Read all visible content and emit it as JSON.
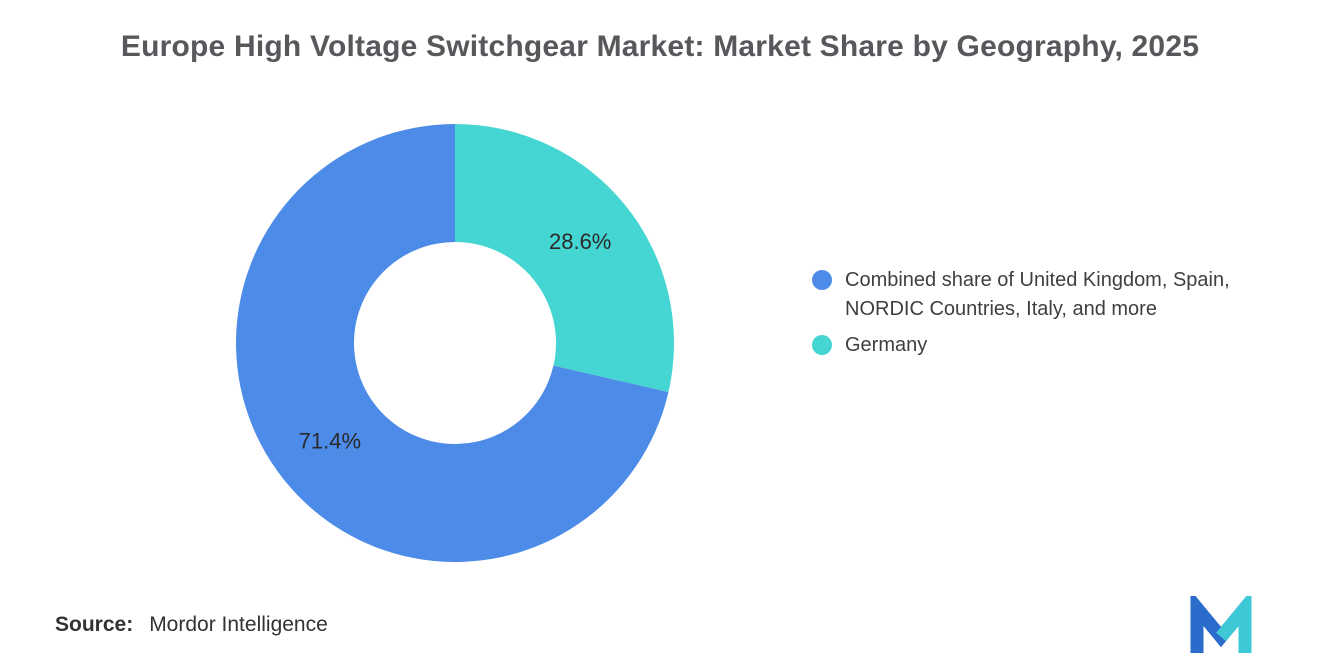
{
  "title": "Europe High Voltage Switchgear Market: Market Share by Geography, 2025",
  "chart_data": {
    "type": "pie",
    "subtype": "donut",
    "title": "Europe High Voltage Switchgear Market: Market Share by Geography, 2025",
    "unit": "%",
    "start_angle_deg": -90,
    "direction": "clockwise",
    "inner_radius_ratio": 0.46,
    "legend_position": "right",
    "slices": [
      {
        "label": "Germany",
        "value": 28.6,
        "data_label": "28.6%",
        "color": "#45D5D2"
      },
      {
        "label": "Combined share of United Kingdom, Spain, NORDIC Countries, Italy, and more",
        "value": 71.4,
        "data_label": "71.4%",
        "color": "#4C8BE8"
      }
    ]
  },
  "legend": {
    "items": [
      {
        "label": "Combined share of United Kingdom, Spain, NORDIC Countries, Italy, and more",
        "color": "#4C8BE8"
      },
      {
        "label": "Germany",
        "color": "#45D5D2"
      }
    ]
  },
  "source": {
    "label": "Source:",
    "value": "Mordor Intelligence"
  },
  "logo": {
    "name": "mordor-intelligence-logo",
    "blue": "#2B6BCB",
    "teal": "#3DC8D5"
  }
}
